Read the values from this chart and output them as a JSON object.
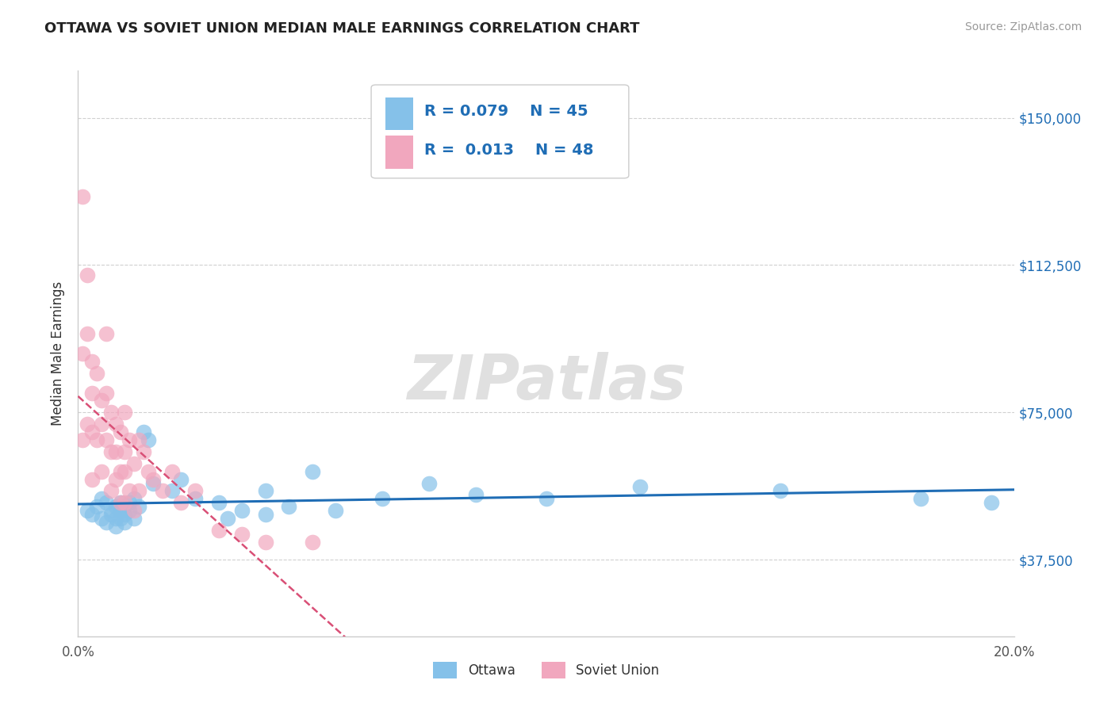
{
  "title": "OTTAWA VS SOVIET UNION MEDIAN MALE EARNINGS CORRELATION CHART",
  "source": "Source: ZipAtlas.com",
  "ylabel": "Median Male Earnings",
  "xlim": [
    0.0,
    0.2
  ],
  "ylim": [
    18000,
    162000
  ],
  "yticks": [
    37500,
    75000,
    112500,
    150000
  ],
  "ytick_labels": [
    "$37,500",
    "$75,000",
    "$112,500",
    "$150,000"
  ],
  "xticks": [
    0.0,
    0.05,
    0.1,
    0.15,
    0.2
  ],
  "xtick_labels": [
    "0.0%",
    "",
    "",
    "",
    "20.0%"
  ],
  "ottawa_color": "#85c1e9",
  "soviet_color": "#f1a7be",
  "ottawa_line_color": "#1f6db5",
  "soviet_line_color": "#d94f76",
  "legend_r_ottawa": "0.079",
  "legend_n_ottawa": "45",
  "legend_r_soviet": "0.013",
  "legend_n_soviet": "48",
  "watermark": "ZIPatlas",
  "ottawa_scatter_x": [
    0.002,
    0.003,
    0.004,
    0.005,
    0.005,
    0.006,
    0.006,
    0.007,
    0.007,
    0.008,
    0.008,
    0.008,
    0.009,
    0.009,
    0.009,
    0.01,
    0.01,
    0.01,
    0.011,
    0.011,
    0.012,
    0.012,
    0.013,
    0.014,
    0.015,
    0.016,
    0.02,
    0.022,
    0.025,
    0.03,
    0.032,
    0.035,
    0.04,
    0.04,
    0.045,
    0.05,
    0.055,
    0.065,
    0.075,
    0.085,
    0.1,
    0.12,
    0.15,
    0.18,
    0.195
  ],
  "ottawa_scatter_y": [
    50000,
    49000,
    51000,
    48000,
    53000,
    47000,
    52000,
    50000,
    49000,
    48000,
    51000,
    46000,
    50000,
    52000,
    48000,
    49000,
    47000,
    51000,
    50000,
    52000,
    48000,
    53000,
    51000,
    70000,
    68000,
    57000,
    55000,
    58000,
    53000,
    52000,
    48000,
    50000,
    55000,
    49000,
    51000,
    60000,
    50000,
    53000,
    57000,
    54000,
    53000,
    56000,
    55000,
    53000,
    52000
  ],
  "soviet_scatter_x": [
    0.001,
    0.001,
    0.001,
    0.002,
    0.002,
    0.002,
    0.003,
    0.003,
    0.003,
    0.003,
    0.004,
    0.004,
    0.005,
    0.005,
    0.005,
    0.006,
    0.006,
    0.006,
    0.007,
    0.007,
    0.007,
    0.008,
    0.008,
    0.008,
    0.009,
    0.009,
    0.009,
    0.01,
    0.01,
    0.01,
    0.01,
    0.011,
    0.011,
    0.012,
    0.012,
    0.013,
    0.013,
    0.014,
    0.015,
    0.016,
    0.018,
    0.02,
    0.022,
    0.025,
    0.03,
    0.035,
    0.04,
    0.05
  ],
  "soviet_scatter_y": [
    130000,
    90000,
    68000,
    110000,
    95000,
    72000,
    88000,
    80000,
    70000,
    58000,
    85000,
    68000,
    78000,
    72000,
    60000,
    95000,
    80000,
    68000,
    75000,
    65000,
    55000,
    72000,
    65000,
    58000,
    70000,
    60000,
    52000,
    75000,
    65000,
    60000,
    52000,
    68000,
    55000,
    62000,
    50000,
    68000,
    55000,
    65000,
    60000,
    58000,
    55000,
    60000,
    52000,
    55000,
    45000,
    44000,
    42000,
    42000
  ],
  "background_color": "#ffffff",
  "grid_color": "#d0d0d0"
}
